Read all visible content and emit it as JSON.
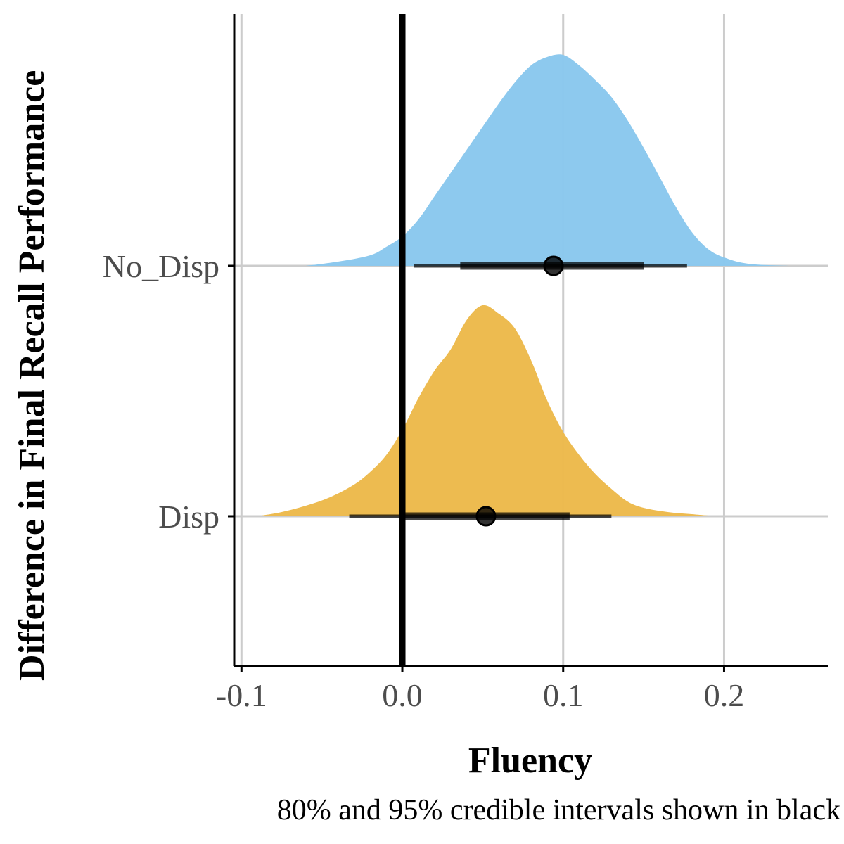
{
  "chart_data": {
    "type": "density-halfeye",
    "title": "",
    "xlabel": "Fluency",
    "ylabel": "Difference in Final Recall Performance",
    "caption": "80% and 95% credible intervals shown in black",
    "xlim": [
      -0.1045,
      0.2645
    ],
    "xticks": [
      -0.1,
      0.0,
      0.1,
      0.2
    ],
    "xtick_labels": [
      "-0.1",
      "0.0",
      "0.1",
      "0.2"
    ],
    "reference_line_x": 0.0,
    "categories": [
      "Disp",
      "No_Disp"
    ],
    "series": [
      {
        "name": "No_Disp",
        "color": "#89c7ed",
        "median": 0.094,
        "ci80": [
          0.036,
          0.15
        ],
        "ci95": [
          0.007,
          0.177
        ],
        "density": [
          [
            -0.06,
            0.0
          ],
          [
            -0.04,
            0.02
          ],
          [
            -0.02,
            0.05
          ],
          [
            -0.01,
            0.09
          ],
          [
            0.0,
            0.14
          ],
          [
            0.01,
            0.22
          ],
          [
            0.02,
            0.33
          ],
          [
            0.03,
            0.44
          ],
          [
            0.04,
            0.55
          ],
          [
            0.05,
            0.66
          ],
          [
            0.06,
            0.77
          ],
          [
            0.07,
            0.87
          ],
          [
            0.08,
            0.95
          ],
          [
            0.09,
            0.99
          ],
          [
            0.1,
            1.0
          ],
          [
            0.11,
            0.95
          ],
          [
            0.12,
            0.88
          ],
          [
            0.13,
            0.8
          ],
          [
            0.14,
            0.69
          ],
          [
            0.15,
            0.56
          ],
          [
            0.16,
            0.42
          ],
          [
            0.17,
            0.28
          ],
          [
            0.18,
            0.16
          ],
          [
            0.19,
            0.08
          ],
          [
            0.2,
            0.04
          ],
          [
            0.215,
            0.01
          ],
          [
            0.24,
            0.0
          ]
        ]
      },
      {
        "name": "Disp",
        "color": "#ecb94a",
        "median": 0.052,
        "ci80": [
          -0.002,
          0.104
        ],
        "ci95": [
          -0.033,
          0.13
        ],
        "density": [
          [
            -0.09,
            0.0
          ],
          [
            -0.075,
            0.02
          ],
          [
            -0.06,
            0.05
          ],
          [
            -0.045,
            0.09
          ],
          [
            -0.03,
            0.15
          ],
          [
            -0.02,
            0.21
          ],
          [
            -0.01,
            0.29
          ],
          [
            0.0,
            0.41
          ],
          [
            0.01,
            0.56
          ],
          [
            0.02,
            0.69
          ],
          [
            0.03,
            0.79
          ],
          [
            0.04,
            0.93
          ],
          [
            0.05,
            1.0
          ],
          [
            0.06,
            0.96
          ],
          [
            0.07,
            0.89
          ],
          [
            0.08,
            0.74
          ],
          [
            0.09,
            0.55
          ],
          [
            0.1,
            0.4
          ],
          [
            0.11,
            0.29
          ],
          [
            0.12,
            0.2
          ],
          [
            0.13,
            0.13
          ],
          [
            0.14,
            0.07
          ],
          [
            0.15,
            0.04
          ],
          [
            0.165,
            0.02
          ],
          [
            0.18,
            0.01
          ],
          [
            0.195,
            0.0
          ]
        ]
      }
    ]
  }
}
